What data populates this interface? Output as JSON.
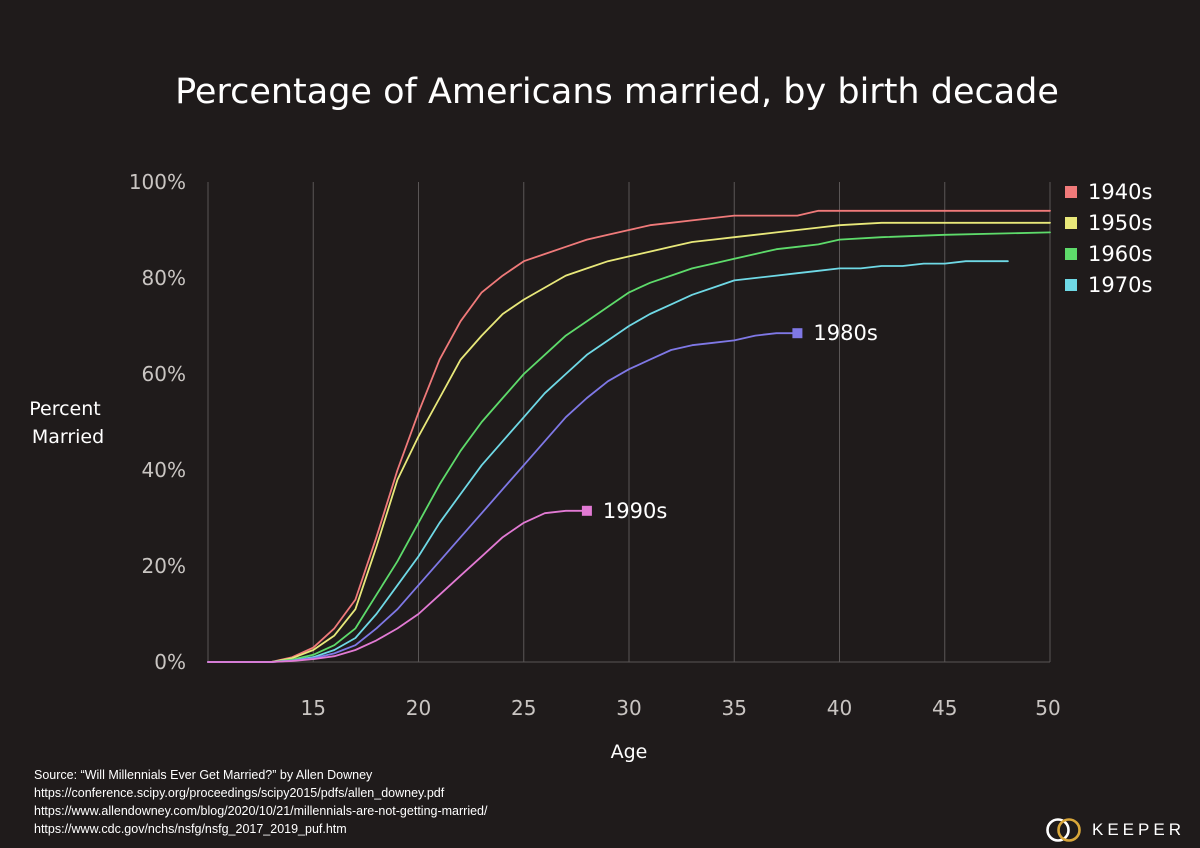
{
  "chart_data": {
    "type": "line",
    "title": "Percentage of Americans married, by birth decade",
    "xlabel": "Age",
    "ylabel": "Percent Married",
    "ylabel_lines": [
      "Percent",
      "Married"
    ],
    "xlim": [
      10,
      50
    ],
    "ylim": [
      0,
      100
    ],
    "x_ticks": [
      15,
      20,
      25,
      30,
      35,
      40,
      45,
      50
    ],
    "x_tick_labels": [
      "15",
      "20",
      "25",
      "30",
      "35",
      "40",
      "45",
      "50"
    ],
    "y_ticks": [
      0,
      20,
      40,
      60,
      80,
      100
    ],
    "y_tick_labels": [
      "0%",
      "20%",
      "40%",
      "60%",
      "80%",
      "100%"
    ],
    "grid": "vertical",
    "legend_position": "right",
    "series": [
      {
        "name": "1940s",
        "color": "#f07a7a",
        "labeled": "legend",
        "x": [
          10,
          13,
          14,
          15,
          16,
          17,
          18,
          19,
          20,
          21,
          22,
          23,
          24,
          25,
          26,
          27,
          28,
          29,
          30,
          31,
          32,
          33,
          34,
          35,
          36,
          37,
          38,
          39,
          40,
          42,
          45,
          50
        ],
        "y": [
          0,
          0,
          1,
          3,
          7,
          13,
          26,
          40,
          52,
          63,
          71,
          77,
          80.5,
          83.5,
          85,
          86.5,
          88,
          89,
          90,
          91,
          91.5,
          92,
          92.5,
          93,
          93,
          93,
          93,
          94,
          94,
          94,
          94,
          94
        ]
      },
      {
        "name": "1950s",
        "color": "#e8e87a",
        "labeled": "legend",
        "x": [
          10,
          13,
          14,
          15,
          16,
          17,
          18,
          19,
          20,
          21,
          22,
          23,
          24,
          25,
          26,
          27,
          28,
          29,
          30,
          31,
          32,
          33,
          34,
          35,
          36,
          37,
          38,
          39,
          40,
          42,
          45,
          50
        ],
        "y": [
          0,
          0,
          0.8,
          2.5,
          5.5,
          11,
          24,
          38,
          47,
          55,
          63,
          68,
          72.5,
          75.5,
          78,
          80.5,
          82,
          83.5,
          84.5,
          85.5,
          86.5,
          87.5,
          88,
          88.5,
          89,
          89.5,
          90,
          90.5,
          91,
          91.5,
          91.5,
          91.5
        ]
      },
      {
        "name": "1960s",
        "color": "#5edb6b",
        "labeled": "legend",
        "x": [
          10,
          13,
          14,
          15,
          16,
          17,
          18,
          19,
          20,
          21,
          22,
          23,
          24,
          25,
          26,
          27,
          28,
          29,
          30,
          31,
          32,
          33,
          34,
          35,
          36,
          37,
          38,
          39,
          40,
          42,
          45,
          50
        ],
        "y": [
          0,
          0,
          0.5,
          1.5,
          3.5,
          7,
          14,
          21,
          29,
          37,
          44,
          50,
          55,
          60,
          64,
          68,
          71,
          74,
          77,
          79,
          80.5,
          82,
          83,
          84,
          85,
          86,
          86.5,
          87,
          88,
          88.5,
          89,
          89.5
        ]
      },
      {
        "name": "1970s",
        "color": "#6fd9e6",
        "labeled": "legend",
        "x": [
          10,
          13,
          14,
          15,
          16,
          17,
          18,
          19,
          20,
          21,
          22,
          23,
          24,
          25,
          26,
          27,
          28,
          29,
          30,
          31,
          32,
          33,
          34,
          35,
          36,
          37,
          38,
          39,
          40,
          41,
          42,
          43,
          44,
          45,
          46,
          47,
          48
        ],
        "y": [
          0,
          0,
          0.3,
          1,
          2.5,
          5,
          10,
          16,
          22,
          29,
          35,
          41,
          46,
          51,
          56,
          60,
          64,
          67,
          70,
          72.5,
          74.5,
          76.5,
          78,
          79.5,
          80,
          80.5,
          81,
          81.5,
          82,
          82,
          82.5,
          82.5,
          83,
          83,
          83.5,
          83.5,
          83.5
        ]
      },
      {
        "name": "1980s",
        "color": "#7f78e6",
        "labeled": "end",
        "x": [
          10,
          13,
          14,
          15,
          16,
          17,
          18,
          19,
          20,
          21,
          22,
          23,
          24,
          25,
          26,
          27,
          28,
          29,
          30,
          31,
          32,
          33,
          34,
          35,
          36,
          37,
          38
        ],
        "y": [
          0,
          0,
          0.3,
          0.8,
          1.8,
          3.5,
          7,
          11,
          16,
          21,
          26,
          31,
          36,
          41,
          46,
          51,
          55,
          58.5,
          61,
          63,
          65,
          66,
          66.5,
          67,
          68,
          68.5,
          68.5
        ]
      },
      {
        "name": "1990s",
        "color": "#e27ad4",
        "labeled": "end",
        "x": [
          10,
          13,
          14,
          15,
          16,
          17,
          18,
          19,
          20,
          21,
          22,
          23,
          24,
          25,
          26,
          27,
          28
        ],
        "y": [
          0,
          0,
          0.2,
          0.6,
          1.2,
          2.5,
          4.5,
          7,
          10,
          14,
          18,
          22,
          26,
          29,
          31,
          31.5,
          31.5
        ]
      }
    ]
  },
  "source": {
    "lines": [
      "Source: “Will Millennials Ever Get Married?” by Allen Downey",
      "https://conference.scipy.org/proceedings/scipy2015/pdfs/allen_downey.pdf",
      "https://www.allendowney.com/blog/2020/10/21/millennials-are-not-getting-married/",
      "https://www.cdc.gov/nchs/nsfg/nsfg_2017_2019_puf.htm"
    ]
  },
  "brand": {
    "name": "KEEPER",
    "logo_icon": "interlocking-rings-icon",
    "ring_colors": [
      "#ffffff",
      "#d9a73a"
    ]
  },
  "colors": {
    "background": "#1f1b1b",
    "grid": "#5a5656"
  }
}
